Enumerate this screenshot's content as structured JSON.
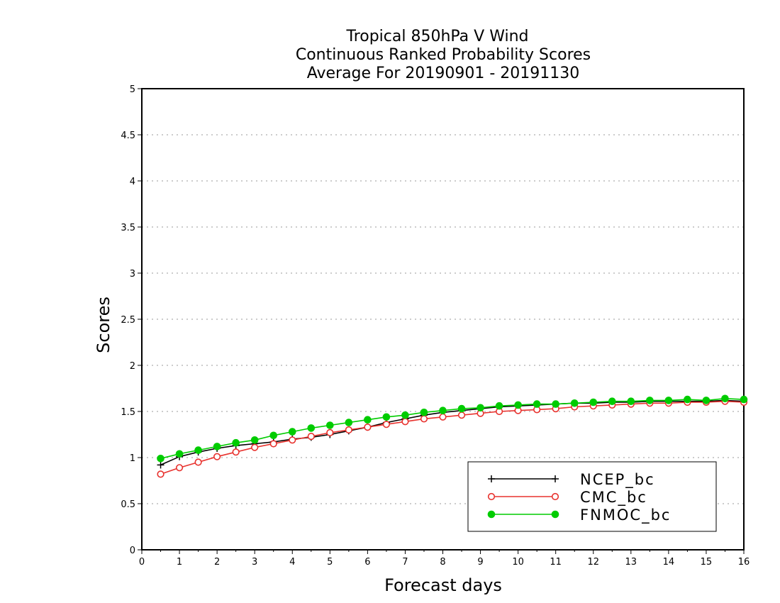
{
  "chart_data": {
    "type": "line",
    "title": [
      "Tropical 850hPa V Wind",
      "Continuous Ranked Probability Scores",
      "Average For 20190901 - 20191130"
    ],
    "xlabel": "Forecast days",
    "ylabel": "Scores",
    "xlim": [
      0,
      16
    ],
    "ylim": [
      0,
      5
    ],
    "x_ticks": [
      "0",
      "1",
      "2",
      "3",
      "4",
      "5",
      "6",
      "7",
      "8",
      "9",
      "10",
      "11",
      "12",
      "13",
      "14",
      "15",
      "16"
    ],
    "y_ticks": [
      "0",
      "0.5",
      "1",
      "1.5",
      "2",
      "2.5",
      "3",
      "3.5",
      "4",
      "4.5",
      "5"
    ],
    "grid": "horizontal dotted",
    "legend_position": "bottom-right",
    "x": [
      0.5,
      1,
      1.5,
      2,
      2.5,
      3,
      3.5,
      4,
      4.5,
      5,
      5.5,
      6,
      6.5,
      7,
      7.5,
      8,
      8.5,
      9,
      9.5,
      10,
      10.5,
      11,
      11.5,
      12,
      12.5,
      13,
      13.5,
      14,
      14.5,
      15,
      15.5,
      16
    ],
    "series": [
      {
        "name": "NCEP_bc",
        "color": "#000000",
        "marker": "plus",
        "values": [
          0.92,
          1.01,
          1.06,
          1.1,
          1.13,
          1.15,
          1.17,
          1.2,
          1.22,
          1.25,
          1.29,
          1.33,
          1.38,
          1.42,
          1.46,
          1.49,
          1.51,
          1.53,
          1.55,
          1.56,
          1.57,
          1.58,
          1.59,
          1.59,
          1.6,
          1.6,
          1.61,
          1.61,
          1.61,
          1.61,
          1.62,
          1.61
        ]
      },
      {
        "name": "CMC_bc",
        "color": "#e8322e",
        "marker": "open-circle",
        "values": [
          0.82,
          0.89,
          0.95,
          1.01,
          1.06,
          1.11,
          1.15,
          1.19,
          1.23,
          1.27,
          1.3,
          1.33,
          1.36,
          1.39,
          1.42,
          1.44,
          1.46,
          1.48,
          1.5,
          1.51,
          1.52,
          1.53,
          1.55,
          1.56,
          1.57,
          1.58,
          1.59,
          1.59,
          1.6,
          1.6,
          1.61,
          1.6
        ]
      },
      {
        "name": "FNMOC_bc",
        "color": "#00cc00",
        "marker": "filled-circle",
        "values": [
          0.99,
          1.04,
          1.08,
          1.12,
          1.16,
          1.19,
          1.24,
          1.28,
          1.32,
          1.35,
          1.38,
          1.41,
          1.44,
          1.46,
          1.49,
          1.51,
          1.53,
          1.54,
          1.56,
          1.57,
          1.58,
          1.58,
          1.59,
          1.6,
          1.61,
          1.61,
          1.62,
          1.62,
          1.63,
          1.62,
          1.64,
          1.63
        ]
      }
    ]
  }
}
